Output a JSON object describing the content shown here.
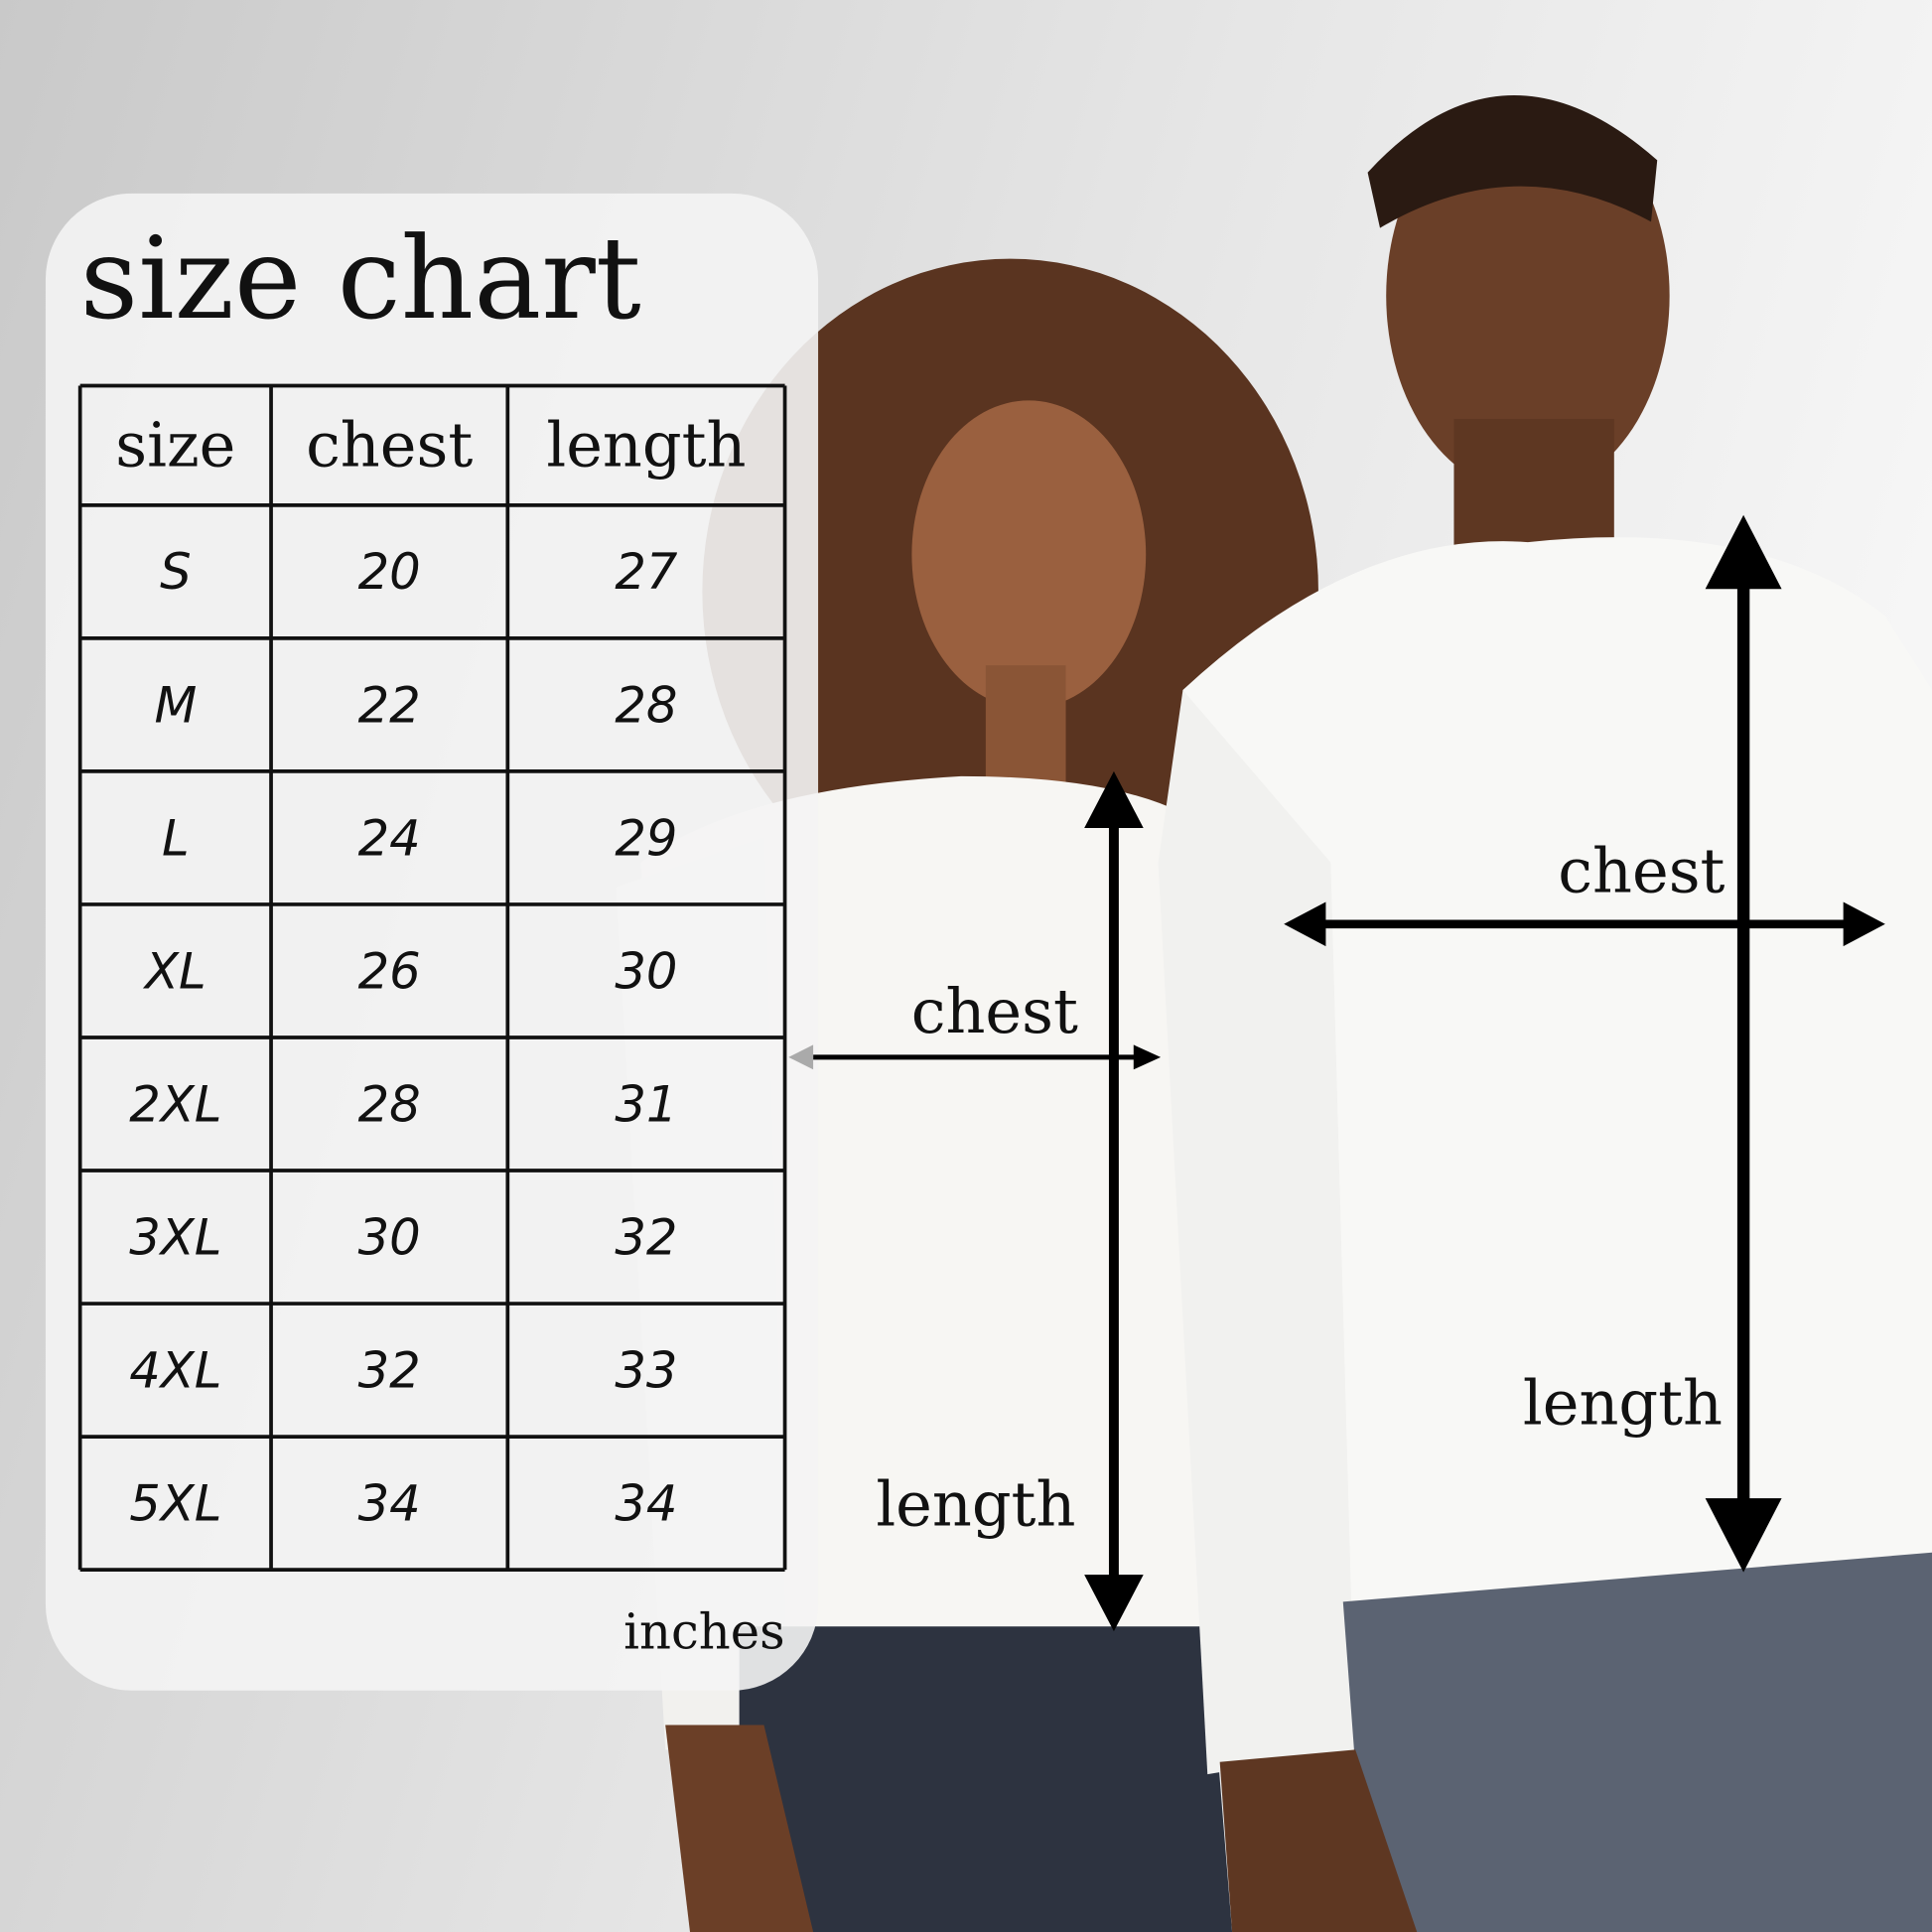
{
  "title": "size chart",
  "table": {
    "header": [
      "size",
      "chest",
      "length"
    ],
    "rows": [
      [
        "S",
        "20",
        "27"
      ],
      [
        "M",
        "22",
        "28"
      ],
      [
        "L",
        "24",
        "29"
      ],
      [
        "XL",
        "26",
        "30"
      ],
      [
        "2XL",
        "28",
        "31"
      ],
      [
        "3XL",
        "30",
        "32"
      ],
      [
        "4XL",
        "32",
        "33"
      ],
      [
        "5XL",
        "34",
        "34"
      ]
    ]
  },
  "unit": "inches",
  "measurements": {
    "woman": {
      "chest": "chest",
      "length": "length"
    },
    "man": {
      "chest": "chest",
      "length": "length"
    }
  }
}
